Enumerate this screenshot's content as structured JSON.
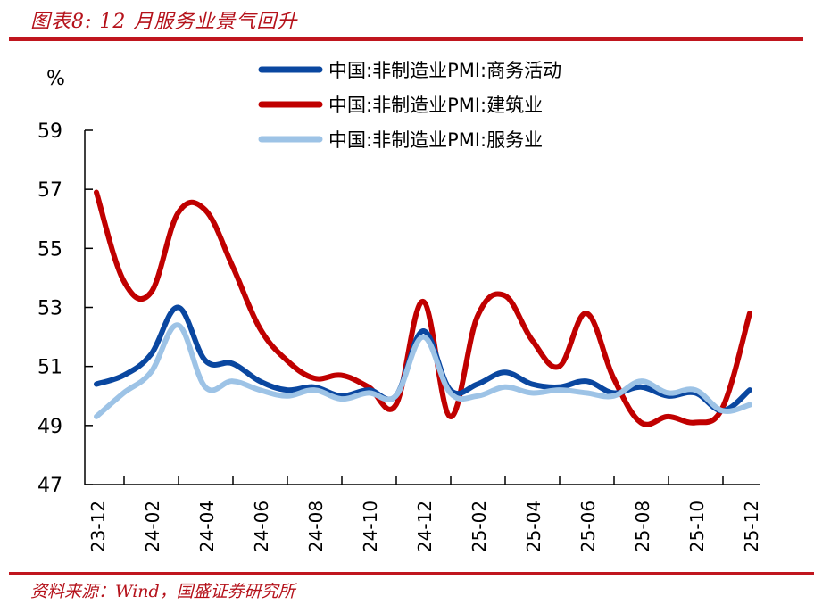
{
  "header": {
    "title": "图表8:  12 月服务业景气回升"
  },
  "footer": {
    "source": "资料来源：Wind，国盛证券研究所"
  },
  "chart_data": {
    "type": "line",
    "title": "图表8:  12 月服务业景气回升",
    "ylabel": "%",
    "xlabel": "",
    "ylim": [
      47,
      59
    ],
    "yticks": [
      "47",
      "49",
      "51",
      "53",
      "55",
      "57",
      "59"
    ],
    "xtick_labels": [
      "23-12",
      "24-02",
      "24-04",
      "24-06",
      "24-08",
      "24-10",
      "24-12",
      "25-02",
      "25-04",
      "25-06",
      "25-08",
      "25-10",
      "25-12"
    ],
    "legend_position": "top-right",
    "grid": false,
    "x": [
      "23-12",
      "24-01",
      "24-02",
      "24-03",
      "24-04",
      "24-05",
      "24-06",
      "24-07",
      "24-08",
      "24-09",
      "24-10",
      "24-11",
      "24-12",
      "25-01",
      "25-02",
      "25-03",
      "25-04",
      "25-05",
      "25-06",
      "25-07",
      "25-08",
      "25-09",
      "25-10",
      "25-11",
      "25-12"
    ],
    "series": [
      {
        "name": "中国:非制造业PMI:商务活动",
        "color": "#0a47a0",
        "values": [
          50.4,
          50.7,
          51.4,
          53.0,
          51.2,
          51.1,
          50.5,
          50.2,
          50.3,
          50.0,
          50.2,
          50.0,
          52.2,
          50.2,
          50.4,
          50.8,
          50.4,
          50.3,
          50.5,
          50.1,
          50.3,
          50.0,
          50.1,
          49.5,
          50.2
        ]
      },
      {
        "name": "中国:非制造业PMI:建筑业",
        "color": "#c00000",
        "values": [
          56.9,
          53.9,
          53.5,
          56.2,
          56.3,
          54.4,
          52.3,
          51.2,
          50.6,
          50.7,
          50.3,
          49.7,
          53.2,
          49.3,
          52.7,
          53.4,
          51.9,
          51.0,
          52.8,
          50.6,
          49.1,
          49.3,
          49.1,
          49.6,
          52.8
        ]
      },
      {
        "name": "中国:非制造业PMI:服务业",
        "color": "#9dc3e6",
        "values": [
          49.3,
          50.1,
          50.8,
          52.4,
          50.3,
          50.5,
          50.2,
          50.0,
          50.2,
          49.9,
          50.1,
          50.0,
          52.0,
          50.1,
          50.0,
          50.3,
          50.1,
          50.2,
          50.1,
          50.0,
          50.5,
          50.1,
          50.2,
          49.5,
          49.7
        ]
      }
    ]
  }
}
